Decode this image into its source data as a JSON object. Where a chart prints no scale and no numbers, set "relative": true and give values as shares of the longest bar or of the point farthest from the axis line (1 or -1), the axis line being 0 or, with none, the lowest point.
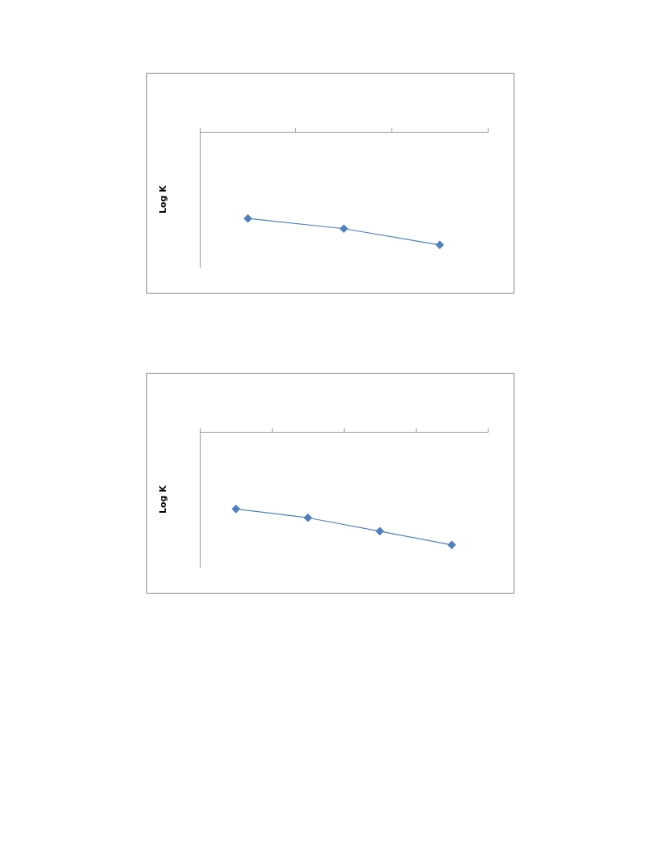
{
  "chart_data": [
    {
      "type": "line",
      "ylabel": "Log K",
      "relative": true,
      "marker": "diamond",
      "legend": false,
      "grid": false,
      "categories": [
        null,
        null,
        null
      ],
      "series": [
        {
          "color": "#4f81bd",
          "values": [
            -0.766,
            -0.856,
            -1
          ]
        }
      ]
    },
    {
      "type": "line",
      "ylabel": "Log K",
      "relative": true,
      "marker": "diamond",
      "legend": false,
      "grid": false,
      "categories": [
        null,
        null,
        null,
        null
      ],
      "series": [
        {
          "color": "#4f81bd",
          "values": [
            -0.681,
            -0.759,
            -0.878,
            -1
          ]
        }
      ]
    }
  ]
}
